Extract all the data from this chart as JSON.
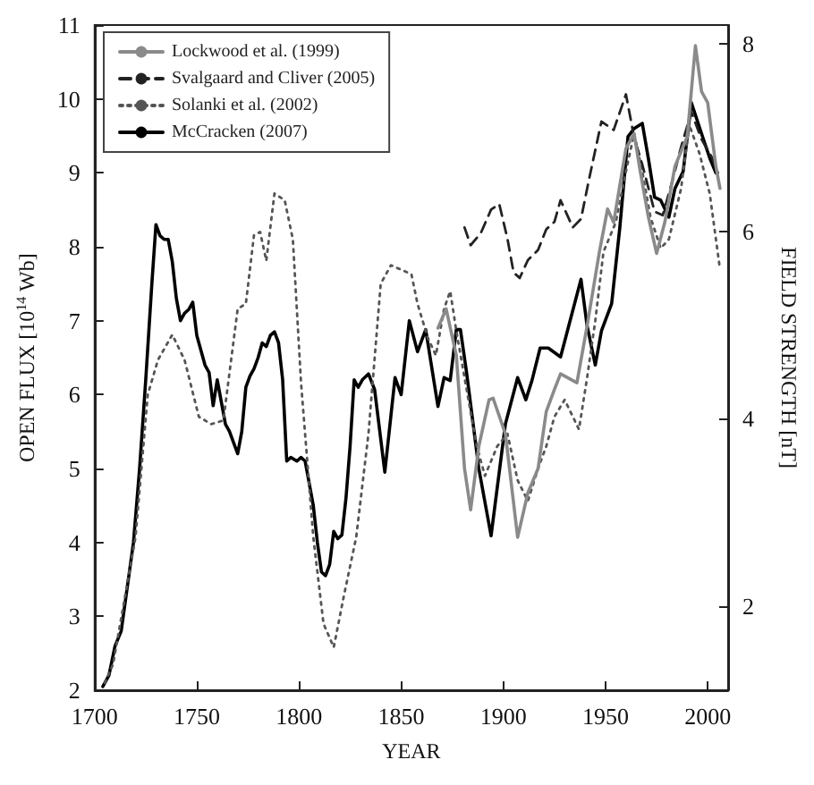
{
  "chart_data": {
    "type": "line",
    "xlabel": "YEAR",
    "ylabel": "OPEN FLUX [10$^{14}$ Wb]",
    "y2label": "FIELD STRENGTH [nT]",
    "xlim": [
      1700,
      2010
    ],
    "xticks": [
      1700,
      1750,
      1800,
      1850,
      1900,
      1950,
      2000
    ],
    "ylim": [
      2,
      11
    ],
    "yticks": [
      2,
      3,
      4,
      5,
      6,
      7,
      8,
      9,
      10,
      11
    ],
    "y2lim": [
      1.1,
      8.2
    ],
    "y2ticks": [
      2,
      4,
      6,
      8
    ],
    "legend": "top left",
    "grid": false,
    "series": [
      {
        "name": "Lockwood et al. (1999)",
        "color": "#8a8a8a",
        "line_style": "solid",
        "x": [
          1868,
          1872,
          1877,
          1881,
          1884,
          1888,
          1893,
          1895,
          1901,
          1907,
          1912,
          1917,
          1921,
          1925,
          1928,
          1936,
          1941,
          1947,
          1951,
          1954,
          1960,
          1964,
          1967,
          1971,
          1975,
          1979,
          1984,
          1990,
          1994,
          1997,
          2000,
          2004,
          2006
        ],
        "values": [
          6.9,
          7.16,
          6.53,
          5.0,
          4.44,
          5.3,
          5.93,
          5.95,
          5.47,
          4.07,
          4.67,
          5.0,
          5.77,
          6.07,
          6.28,
          6.16,
          6.93,
          7.93,
          8.51,
          8.33,
          9.33,
          9.53,
          9.02,
          8.4,
          7.91,
          8.33,
          9.09,
          9.49,
          10.72,
          10.1,
          9.95,
          9.09,
          8.79
        ]
      },
      {
        "name": "Svalgaard and Cliver (2005)",
        "color": "#222222",
        "line_style": "dashed",
        "axis": "y2",
        "x": [
          1881,
          1884,
          1889,
          1894,
          1898,
          1902,
          1905,
          1908,
          1912,
          1917,
          1921,
          1925,
          1928,
          1934,
          1938,
          1942,
          1948,
          1954,
          1960,
          1964,
          1968,
          1974,
          1978,
          1983,
          1987,
          1992,
          1997,
          2002,
          2005
        ],
        "values": [
          6.04,
          5.85,
          5.98,
          6.23,
          6.29,
          5.92,
          5.56,
          5.5,
          5.69,
          5.8,
          6.02,
          6.1,
          6.33,
          6.04,
          6.13,
          6.56,
          7.17,
          7.08,
          7.46,
          7.0,
          6.71,
          6.21,
          6.17,
          6.56,
          6.9,
          7.27,
          6.98,
          6.79,
          6.62
        ]
      },
      {
        "name": "Solanki et al. (2002)",
        "color": "#555555",
        "line_style": "dotted",
        "x": [
          1705,
          1709,
          1720,
          1726,
          1731,
          1738,
          1744,
          1751,
          1757,
          1763,
          1770,
          1774,
          1778,
          1781,
          1784,
          1788,
          1793,
          1797,
          1801,
          1807,
          1812,
          1817,
          1822,
          1828,
          1834,
          1840,
          1845,
          1855,
          1858,
          1863,
          1867,
          1871,
          1874,
          1877,
          1881,
          1887,
          1891,
          1897,
          1902,
          1907,
          1912,
          1917,
          1921,
          1925,
          1930,
          1937,
          1941,
          1945,
          1949,
          1955,
          1960,
          1964,
          1968,
          1972,
          1977,
          1981,
          1987,
          1991,
          1996,
          2001,
          2006
        ],
        "values": [
          2.1,
          2.35,
          4.07,
          6.0,
          6.47,
          6.81,
          6.47,
          5.7,
          5.6,
          5.65,
          7.16,
          7.23,
          8.16,
          8.2,
          7.81,
          8.72,
          8.63,
          8.1,
          6.16,
          4.07,
          2.9,
          2.58,
          3.28,
          4.07,
          5.47,
          7.5,
          7.75,
          7.63,
          7.23,
          6.77,
          6.53,
          7.16,
          7.4,
          6.86,
          6.23,
          5.3,
          4.9,
          5.3,
          5.47,
          4.84,
          4.56,
          5.0,
          5.3,
          5.7,
          5.93,
          5.53,
          6.23,
          7.0,
          7.93,
          8.33,
          9.02,
          9.53,
          9.02,
          8.4,
          7.98,
          8.1,
          8.79,
          9.65,
          9.26,
          8.72,
          7.7
        ]
      },
      {
        "name": "McCracken (2007)",
        "color": "#000000",
        "line_style": "solid",
        "x": [
          1704,
          1707,
          1710,
          1713,
          1716,
          1719,
          1722,
          1725,
          1728,
          1730,
          1732,
          1734,
          1736,
          1738,
          1740,
          1742,
          1744,
          1746,
          1748,
          1750,
          1752,
          1754,
          1756,
          1758,
          1760,
          1762,
          1764,
          1766,
          1768,
          1770,
          1772,
          1774,
          1776,
          1778,
          1780,
          1782,
          1784,
          1786,
          1788,
          1790,
          1792,
          1794,
          1796,
          1799,
          1801,
          1803,
          1805,
          1807,
          1809,
          1811,
          1813,
          1815,
          1817,
          1819,
          1821,
          1823,
          1825,
          1827,
          1829,
          1831,
          1834,
          1837,
          1842,
          1847,
          1850,
          1854,
          1858,
          1862,
          1868,
          1871,
          1874,
          1877,
          1879,
          1882,
          1888,
          1894,
          1901,
          1907,
          1911,
          1914,
          1918,
          1922,
          1928,
          1932,
          1938,
          1941,
          1945,
          1948,
          1953,
          1957,
          1961,
          1964,
          1968,
          1971,
          1974,
          1977,
          1981,
          1984,
          1988,
          1992,
          1997,
          2001,
          2004
        ],
        "values": [
          2.05,
          2.2,
          2.6,
          2.8,
          3.4,
          4.0,
          5.0,
          6.2,
          7.5,
          8.3,
          8.15,
          8.1,
          8.1,
          7.8,
          7.3,
          7.0,
          7.1,
          7.15,
          7.25,
          6.8,
          6.6,
          6.4,
          6.3,
          5.85,
          6.2,
          5.9,
          5.6,
          5.5,
          5.35,
          5.2,
          5.5,
          6.1,
          6.25,
          6.35,
          6.5,
          6.7,
          6.65,
          6.8,
          6.85,
          6.7,
          6.2,
          5.1,
          5.15,
          5.1,
          5.15,
          5.1,
          4.8,
          4.5,
          4.0,
          3.6,
          3.55,
          3.7,
          4.15,
          4.05,
          4.1,
          4.6,
          5.3,
          6.2,
          6.1,
          6.2,
          6.28,
          6.07,
          4.95,
          6.23,
          6.0,
          7.0,
          6.58,
          6.88,
          5.84,
          6.23,
          6.19,
          6.88,
          6.88,
          6.3,
          5.0,
          4.09,
          5.6,
          6.23,
          5.93,
          6.19,
          6.63,
          6.63,
          6.51,
          6.93,
          7.56,
          6.93,
          6.4,
          6.86,
          7.23,
          8.26,
          9.49,
          9.6,
          9.67,
          9.19,
          8.67,
          8.63,
          8.4,
          8.79,
          9.02,
          9.95,
          9.53,
          9.2,
          9.0
        ]
      }
    ]
  }
}
